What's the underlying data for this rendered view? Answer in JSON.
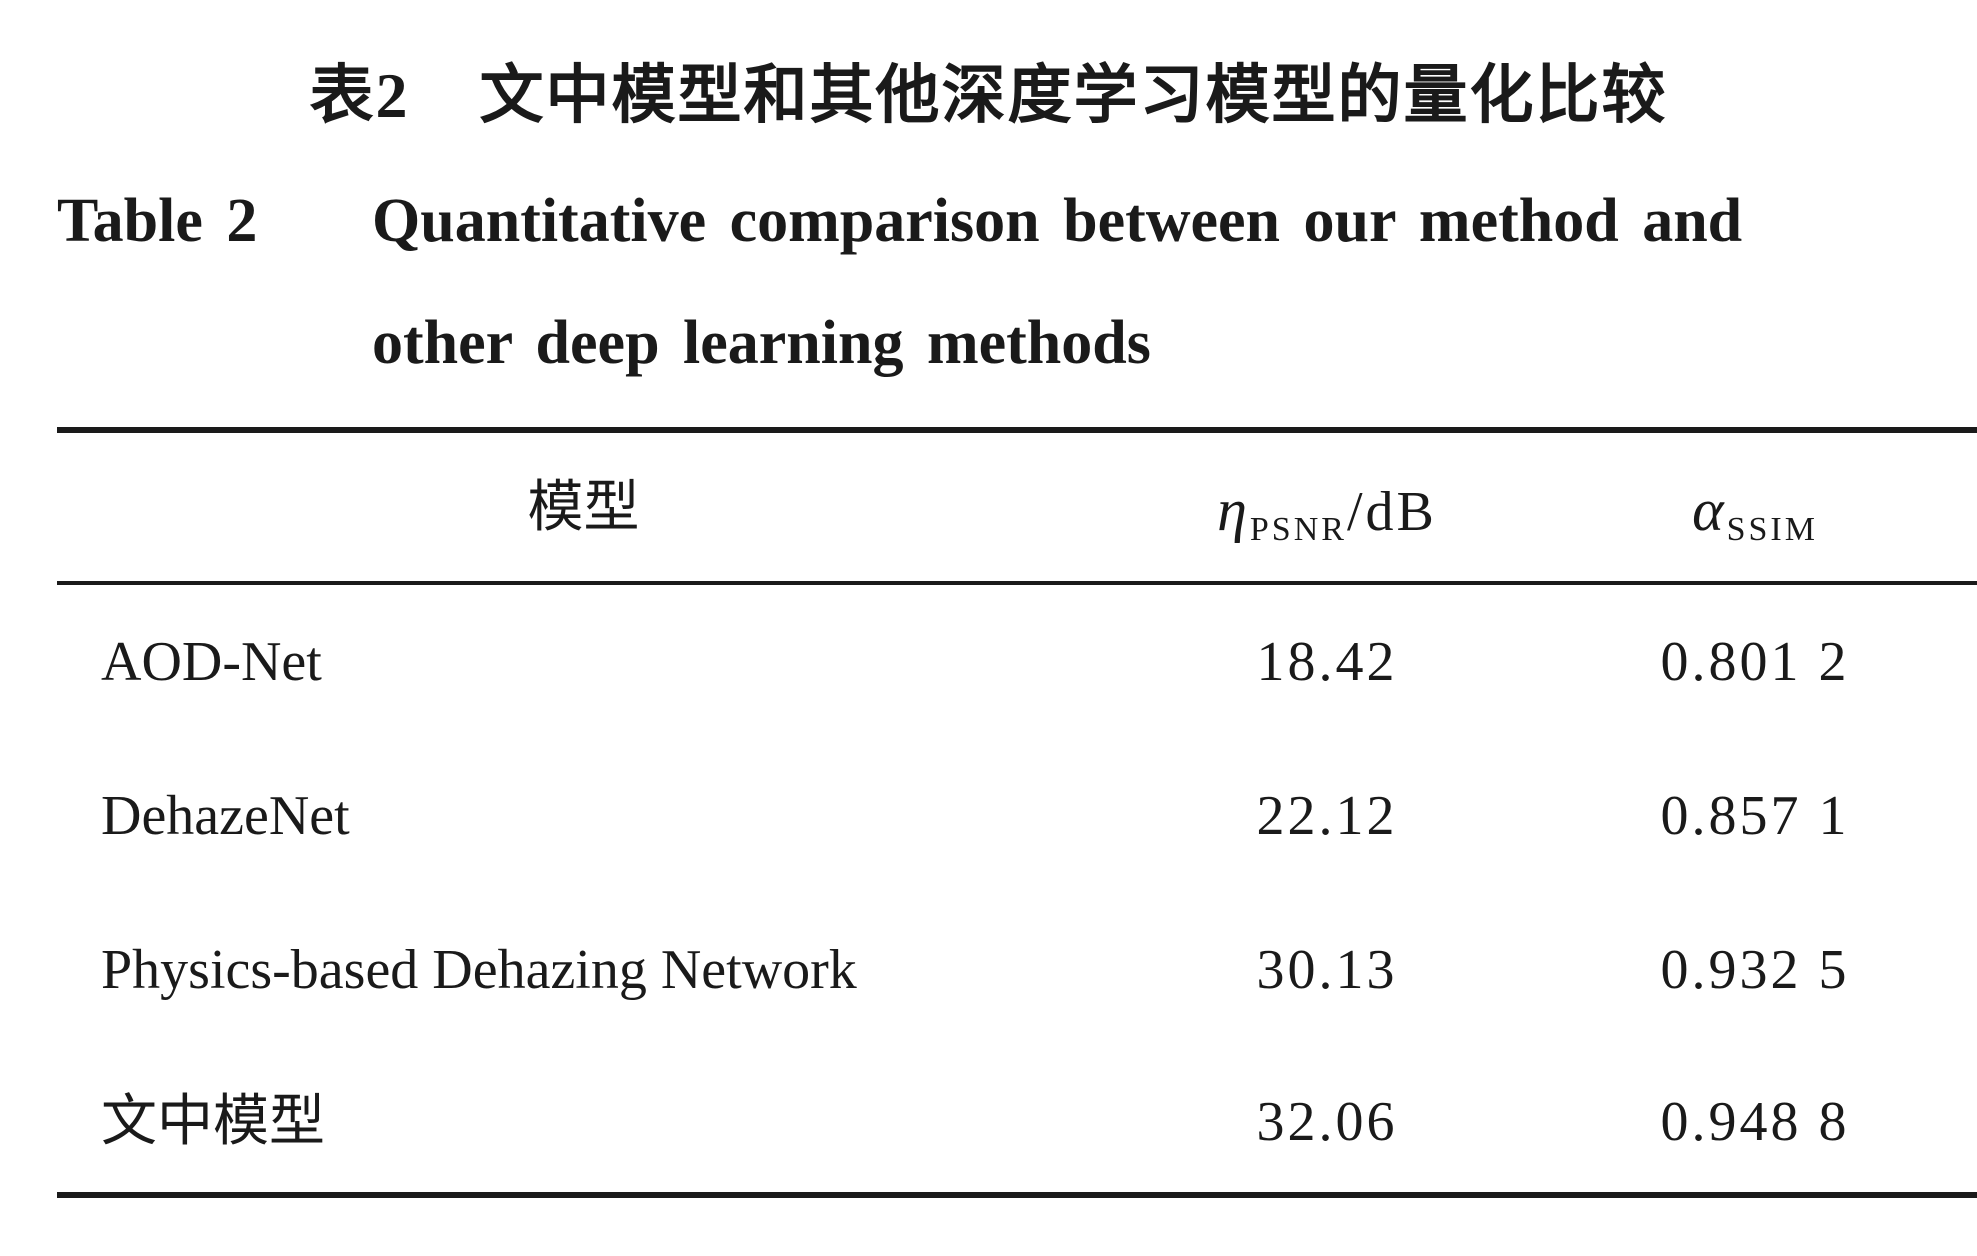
{
  "caption": {
    "zh_label": "表2",
    "zh_title": "文中模型和其他深度学习模型的量化比较",
    "en_label": "Table 2",
    "en_title_line1": "Quantitative comparison between our method and",
    "en_title_line2": "other deep learning methods"
  },
  "table": {
    "header": [
      {
        "text": "模型"
      },
      {
        "symbol": "η",
        "subscript": "PSNR",
        "unit": "/dB"
      },
      {
        "symbol": "α",
        "subscript": "SSIM"
      }
    ],
    "rows": [
      [
        "AOD-Net",
        "18.42",
        "0.801 2"
      ],
      [
        "DehazeNet",
        "22.12",
        "0.857 1"
      ],
      [
        "Physics-based Dehazing Network",
        "30.13",
        "0.932 5"
      ],
      [
        "文中模型",
        "32.06",
        "0.948 8"
      ]
    ]
  }
}
